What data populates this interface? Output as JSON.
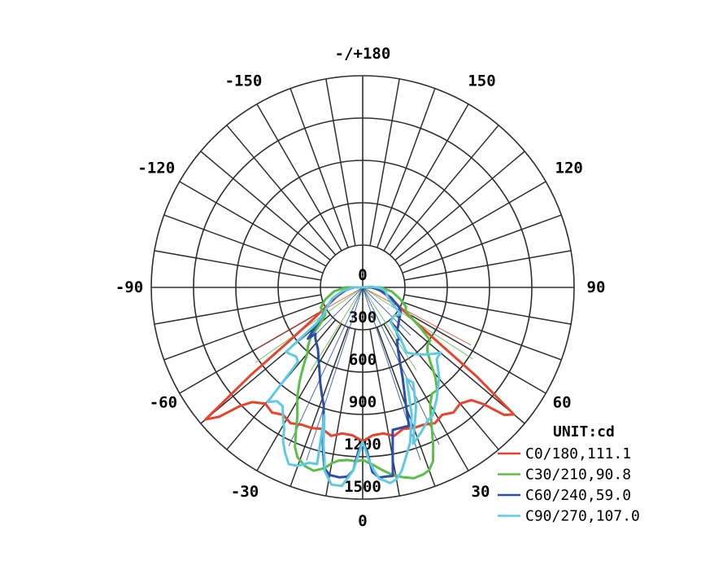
{
  "chart_data": {
    "type": "line",
    "subtype": "polar-photometric-distribution",
    "title": "",
    "coordinate_system": "polar",
    "angle_convention": {
      "zero_direction": "down",
      "top_label": "-/+180",
      "label_step_deg": 30,
      "grid_step_deg": 10
    },
    "radial_axis": {
      "unit": "cd",
      "min": 0,
      "max": 1500,
      "ring_step": 300,
      "tick_labels": [
        "0",
        "300",
        "600",
        "900",
        "1200",
        "1500"
      ]
    },
    "angle_labels": [
      {
        "angle": 180,
        "text": "-/+180"
      },
      {
        "angle": -150,
        "text": "-150"
      },
      {
        "angle": -120,
        "text": "-120"
      },
      {
        "angle": -90,
        "text": "-90"
      },
      {
        "angle": -60,
        "text": "-60"
      },
      {
        "angle": -30,
        "text": "-30"
      },
      {
        "angle": 0,
        "text": "0"
      },
      {
        "angle": 30,
        "text": "30"
      },
      {
        "angle": 60,
        "text": "60"
      },
      {
        "angle": 90,
        "text": "90"
      },
      {
        "angle": 120,
        "text": "120"
      },
      {
        "angle": 150,
        "text": "150"
      }
    ],
    "legend": {
      "title": "UNIT:cd",
      "position": "bottom-right",
      "entries": [
        {
          "label": "C0/180,111.1",
          "color": "#e8432d"
        },
        {
          "label": "C30/210,90.8",
          "color": "#5abf49"
        },
        {
          "label": "C60/240,59.0",
          "color": "#2b4ea6"
        },
        {
          "label": "C90/270,107.0",
          "color": "#5ecae4"
        }
      ]
    },
    "series": [
      {
        "name": "C0/180",
        "legend_label": "C0/180,111.1",
        "color": "#e8432d",
        "points_deg_cd": [
          [
            -95,
            0
          ],
          [
            -90,
            60
          ],
          [
            -85,
            95
          ],
          [
            -80,
            125
          ],
          [
            -75,
            155
          ],
          [
            -70,
            200
          ],
          [
            -65,
            250
          ],
          [
            -60,
            340
          ],
          [
            -57,
            430
          ],
          [
            -54,
            640
          ],
          [
            -52,
            1000
          ],
          [
            -50,
            1455
          ],
          [
            -48,
            1370
          ],
          [
            -46,
            1210
          ],
          [
            -44,
            1130
          ],
          [
            -40,
            1075
          ],
          [
            -36,
            1095
          ],
          [
            -32,
            1065
          ],
          [
            -28,
            1090
          ],
          [
            -24,
            1065
          ],
          [
            -20,
            1060
          ],
          [
            -16,
            1043
          ],
          [
            -12,
            1075
          ],
          [
            -8,
            1045
          ],
          [
            -4,
            1050
          ],
          [
            0,
            1089
          ],
          [
            4,
            1050
          ],
          [
            8,
            1045
          ],
          [
            12,
            1075
          ],
          [
            16,
            1043
          ],
          [
            20,
            1060
          ],
          [
            24,
            1065
          ],
          [
            28,
            1090
          ],
          [
            32,
            1065
          ],
          [
            36,
            1095
          ],
          [
            40,
            1075
          ],
          [
            44,
            1110
          ],
          [
            46,
            1190
          ],
          [
            48,
            1350
          ],
          [
            50,
            1400
          ],
          [
            52,
            1030
          ],
          [
            54,
            660
          ],
          [
            57,
            440
          ],
          [
            60,
            345
          ],
          [
            65,
            250
          ],
          [
            70,
            200
          ],
          [
            75,
            155
          ],
          [
            80,
            125
          ],
          [
            85,
            95
          ],
          [
            90,
            60
          ],
          [
            95,
            0
          ]
        ]
      },
      {
        "name": "C30/210",
        "legend_label": "C30/210,90.8",
        "color": "#5abf49",
        "points_deg_cd": [
          [
            -100,
            0
          ],
          [
            -90,
            125
          ],
          [
            -82,
            205
          ],
          [
            -72,
            280
          ],
          [
            -64,
            330
          ],
          [
            -58,
            335
          ],
          [
            -54,
            328
          ],
          [
            -50,
            385
          ],
          [
            -46,
            515
          ],
          [
            -43,
            570
          ],
          [
            -40,
            610
          ],
          [
            -37,
            700
          ],
          [
            -34,
            800
          ],
          [
            -31,
            900
          ],
          [
            -29,
            958
          ],
          [
            -27,
            1020
          ],
          [
            -25,
            1120
          ],
          [
            -23,
            1230
          ],
          [
            -21,
            1290
          ],
          [
            -18,
            1330
          ],
          [
            -15,
            1345
          ],
          [
            -12,
            1310
          ],
          [
            -10,
            1265
          ],
          [
            -8,
            1240
          ],
          [
            -5,
            1228
          ],
          [
            -2,
            1233
          ],
          [
            0,
            1223
          ],
          [
            3,
            1255
          ],
          [
            6,
            1300
          ],
          [
            9,
            1345
          ],
          [
            12,
            1375
          ],
          [
            15,
            1400
          ],
          [
            18,
            1393
          ],
          [
            20,
            1378
          ],
          [
            22,
            1330
          ],
          [
            24,
            1230
          ],
          [
            26,
            1120
          ],
          [
            28,
            1030
          ],
          [
            30,
            958
          ],
          [
            33,
            900
          ],
          [
            36,
            898
          ],
          [
            39,
            820
          ],
          [
            42,
            720
          ],
          [
            45,
            650
          ],
          [
            48,
            618
          ],
          [
            52,
            608
          ],
          [
            55,
            500
          ],
          [
            58,
            410
          ],
          [
            62,
            345
          ],
          [
            66,
            336
          ],
          [
            72,
            285
          ],
          [
            82,
            210
          ],
          [
            90,
            128
          ],
          [
            100,
            0
          ]
        ]
      },
      {
        "name": "C60/240",
        "legend_label": "C60/240,59.0",
        "color": "#2b4ea6",
        "points_deg_cd": [
          [
            -100,
            0
          ],
          [
            -90,
            65
          ],
          [
            -80,
            135
          ],
          [
            -70,
            215
          ],
          [
            -62,
            285
          ],
          [
            -57,
            325
          ],
          [
            -52,
            400
          ],
          [
            -49,
            465
          ],
          [
            -47,
            532
          ],
          [
            -45.5,
            470
          ],
          [
            -43,
            492
          ],
          [
            -40,
            512
          ],
          [
            -36,
            540
          ],
          [
            -32,
            592
          ],
          [
            -28,
            655
          ],
          [
            -24,
            740
          ],
          [
            -21,
            810
          ],
          [
            -18.3,
            881
          ],
          [
            -17,
            950
          ],
          [
            -15,
            1100
          ],
          [
            -13.5,
            1200
          ],
          [
            -12,
            1310
          ],
          [
            -10,
            1350
          ],
          [
            -7,
            1356
          ],
          [
            -4.7,
            1346
          ],
          [
            -3,
            1300
          ],
          [
            -1.5,
            1160
          ],
          [
            0,
            1100
          ],
          [
            1.5,
            1160
          ],
          [
            3,
            1310
          ],
          [
            5,
            1352
          ],
          [
            7,
            1350
          ],
          [
            9.1,
            1353
          ],
          [
            10.1,
            1213
          ],
          [
            11.9,
            1032
          ],
          [
            18.5,
            1034
          ],
          [
            20,
            903
          ],
          [
            24,
            695
          ],
          [
            29,
            520
          ],
          [
            33,
            446
          ],
          [
            35.5,
            450
          ],
          [
            37,
            400
          ],
          [
            40,
            385
          ],
          [
            44,
            365
          ],
          [
            50,
            340
          ],
          [
            57,
            322
          ],
          [
            62,
            290
          ],
          [
            70,
            215
          ],
          [
            80,
            135
          ],
          [
            90,
            65
          ],
          [
            100,
            0
          ]
        ]
      },
      {
        "name": "C90/270",
        "legend_label": "C90/270,107.0",
        "color": "#5ecae4",
        "points_deg_cd": [
          [
            -100,
            0
          ],
          [
            -90,
            70
          ],
          [
            -80,
            145
          ],
          [
            -70,
            230
          ],
          [
            -60,
            300
          ],
          [
            -55,
            340
          ],
          [
            -52,
            420
          ],
          [
            -50,
            709
          ],
          [
            -48,
            702
          ],
          [
            -44,
            680
          ],
          [
            -41,
            699
          ],
          [
            -39.7,
            1056
          ],
          [
            -37,
            1010
          ],
          [
            -34,
            1015
          ],
          [
            -31.5,
            1082
          ],
          [
            -29,
            1150
          ],
          [
            -27.4,
            1228
          ],
          [
            -25,
            1300
          ],
          [
            -22.7,
            1358
          ],
          [
            -20,
            1345
          ],
          [
            -17,
            1300
          ],
          [
            -14.5,
            1293
          ],
          [
            -16.7,
            946
          ],
          [
            -14,
            1150
          ],
          [
            -12.5,
            1250
          ],
          [
            -11.8,
            1326
          ],
          [
            -9,
            1415
          ],
          [
            -6,
            1415
          ],
          [
            -3,
            1300
          ],
          [
            0,
            1096
          ],
          [
            2,
            1220
          ],
          [
            3.5,
            1300
          ],
          [
            5,
            1360
          ],
          [
            8,
            1400
          ],
          [
            10,
            1380
          ],
          [
            12,
            1330
          ],
          [
            13.8,
            1260
          ],
          [
            17,
            1150
          ],
          [
            21,
            970
          ],
          [
            25.7,
            718
          ],
          [
            27.9,
            764
          ],
          [
            24,
            930
          ],
          [
            20,
            1070
          ],
          [
            17.9,
            1164
          ],
          [
            22,
            1107
          ],
          [
            26,
            1050
          ],
          [
            28.7,
            1033
          ],
          [
            33.6,
            949
          ],
          [
            40.5,
            835
          ],
          [
            46,
            730
          ],
          [
            50.2,
            721
          ],
          [
            47,
            690
          ],
          [
            42,
            640
          ],
          [
            38,
            600
          ],
          [
            34,
            557
          ],
          [
            36.6,
            446
          ],
          [
            39,
            312
          ],
          [
            48,
            300
          ],
          [
            55,
            330
          ],
          [
            60,
            250
          ],
          [
            68,
            195
          ],
          [
            75,
            175
          ],
          [
            82,
            160
          ],
          [
            88,
            120
          ],
          [
            95,
            60
          ],
          [
            100,
            0
          ]
        ]
      }
    ],
    "rays": [
      {
        "color": "#e8432d",
        "angle": -60,
        "cd": 870
      },
      {
        "color": "#e8432d",
        "angle": 62,
        "cd": 870
      },
      {
        "color": "#5abf49",
        "angle": -55,
        "cd": 930
      },
      {
        "color": "#5abf49",
        "angle": 57,
        "cd": 930
      },
      {
        "color": "#5abf49",
        "angle": -32,
        "cd": 700
      },
      {
        "color": "#5abf49",
        "angle": 33,
        "cd": 700
      },
      {
        "color": "#2b4ea6",
        "angle": -45,
        "cd": 480
      },
      {
        "color": "#2b4ea6",
        "angle": 45,
        "cd": 480
      },
      {
        "color": "#2b4ea6",
        "angle": -25,
        "cd": 1240
      },
      {
        "color": "#2b4ea6",
        "angle": 26,
        "cd": 1240
      },
      {
        "color": "#2b4ea6",
        "angle": -18,
        "cd": 1290
      },
      {
        "color": "#2b4ea6",
        "angle": 18.5,
        "cd": 1290
      }
    ]
  },
  "colors": {
    "background": "#ffffff",
    "grid": "#2e2e2e",
    "text": "#000000"
  }
}
